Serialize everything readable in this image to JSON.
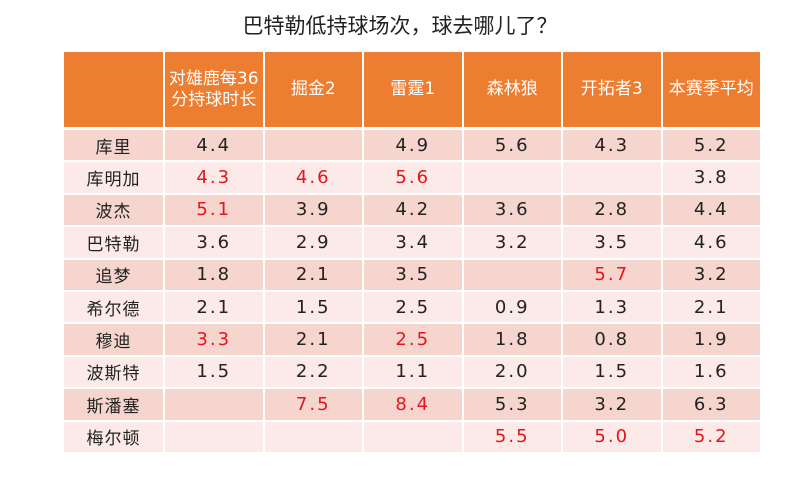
{
  "title": "巴特勒低持球场次，球去哪儿了？",
  "colors": {
    "header": "#ec7d31",
    "highlight": "#e8141b"
  },
  "headers": [
    "",
    "对雄鹿每36分持球时长",
    "掘金2",
    "雷霆1",
    "森林狼",
    "开拓者3",
    "本赛季平均"
  ],
  "rows": [
    {
      "name": "库里",
      "cells": [
        {
          "v": "4.4"
        },
        {
          "v": ""
        },
        {
          "v": "4.9"
        },
        {
          "v": "5.6"
        },
        {
          "v": "4.3"
        },
        {
          "v": "5.2"
        }
      ]
    },
    {
      "name": "库明加",
      "cells": [
        {
          "v": "4.3",
          "red": true
        },
        {
          "v": "4.6",
          "red": true
        },
        {
          "v": "5.6",
          "red": true
        },
        {
          "v": ""
        },
        {
          "v": ""
        },
        {
          "v": "3.8"
        }
      ]
    },
    {
      "name": "波杰",
      "cells": [
        {
          "v": "5.1",
          "red": true
        },
        {
          "v": "3.9"
        },
        {
          "v": "4.2"
        },
        {
          "v": "3.6"
        },
        {
          "v": "2.8"
        },
        {
          "v": "4.4"
        }
      ]
    },
    {
      "name": "巴特勒",
      "cells": [
        {
          "v": "3.6"
        },
        {
          "v": "2.9"
        },
        {
          "v": "3.4"
        },
        {
          "v": "3.2"
        },
        {
          "v": "3.5"
        },
        {
          "v": "4.6"
        }
      ]
    },
    {
      "name": "追梦",
      "cells": [
        {
          "v": "1.8"
        },
        {
          "v": "2.1"
        },
        {
          "v": "3.5"
        },
        {
          "v": ""
        },
        {
          "v": "5.7",
          "red": true
        },
        {
          "v": "3.2"
        }
      ]
    },
    {
      "name": "希尔德",
      "cells": [
        {
          "v": "2.1"
        },
        {
          "v": "1.5"
        },
        {
          "v": "2.5"
        },
        {
          "v": "0.9"
        },
        {
          "v": "1.3"
        },
        {
          "v": "2.1"
        }
      ]
    },
    {
      "name": "穆迪",
      "cells": [
        {
          "v": "3.3",
          "red": true
        },
        {
          "v": "2.1"
        },
        {
          "v": "2.5",
          "red": true
        },
        {
          "v": "1.8"
        },
        {
          "v": "0.8"
        },
        {
          "v": "1.9"
        }
      ]
    },
    {
      "name": "波斯特",
      "cells": [
        {
          "v": "1.5"
        },
        {
          "v": "2.2"
        },
        {
          "v": "1.1"
        },
        {
          "v": "2.0"
        },
        {
          "v": "1.5"
        },
        {
          "v": "1.6"
        }
      ]
    },
    {
      "name": "斯潘塞",
      "cells": [
        {
          "v": ""
        },
        {
          "v": "7.5",
          "red": true
        },
        {
          "v": "8.4",
          "red": true
        },
        {
          "v": "5.3"
        },
        {
          "v": "3.2"
        },
        {
          "v": "6.3"
        }
      ]
    },
    {
      "name": "梅尔顿",
      "cells": [
        {
          "v": ""
        },
        {
          "v": ""
        },
        {
          "v": ""
        },
        {
          "v": "5.5",
          "red": true
        },
        {
          "v": "5.0",
          "red": true
        },
        {
          "v": "5.2",
          "red": true
        }
      ]
    }
  ]
}
